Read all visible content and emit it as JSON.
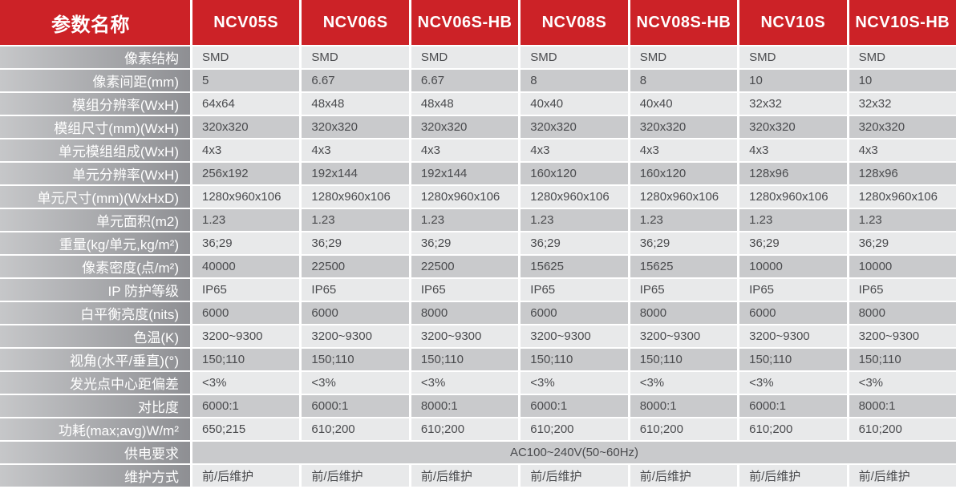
{
  "colors": {
    "header_red": "#cc2227",
    "row_light": "#e8e9ea",
    "row_dark": "#c9cacc",
    "label_gradient_left": "#c6c7c9",
    "label_gradient_right": "#8e8f93",
    "header_text": "#ffffff",
    "data_text": "#4a4b4e"
  },
  "table": {
    "param_header": "参数名称",
    "columns": [
      "NCV05S",
      "NCV06S",
      "NCV06S-HB",
      "NCV08S",
      "NCV08S-HB",
      "NCV10S",
      "NCV10S-HB"
    ],
    "rows": [
      {
        "label": "像素结构",
        "values": [
          "SMD",
          "SMD",
          "SMD",
          "SMD",
          "SMD",
          "SMD",
          "SMD"
        ]
      },
      {
        "label": "像素间距(mm)",
        "values": [
          "5",
          "6.67",
          "6.67",
          "8",
          "8",
          "10",
          "10"
        ]
      },
      {
        "label": "模组分辨率(WxH)",
        "values": [
          "64x64",
          "48x48",
          "48x48",
          "40x40",
          "40x40",
          "32x32",
          "32x32"
        ]
      },
      {
        "label": "模组尺寸(mm)(WxH)",
        "values": [
          "320x320",
          "320x320",
          "320x320",
          "320x320",
          "320x320",
          "320x320",
          "320x320"
        ]
      },
      {
        "label": "单元模组组成(WxH)",
        "values": [
          "4x3",
          "4x3",
          "4x3",
          "4x3",
          "4x3",
          "4x3",
          "4x3"
        ]
      },
      {
        "label": "单元分辨率(WxH)",
        "values": [
          "256x192",
          "192x144",
          "192x144",
          "160x120",
          "160x120",
          "128x96",
          "128x96"
        ]
      },
      {
        "label": "单元尺寸(mm)(WxHxD)",
        "values": [
          "1280x960x106",
          "1280x960x106",
          "1280x960x106",
          "1280x960x106",
          "1280x960x106",
          "1280x960x106",
          "1280x960x106"
        ]
      },
      {
        "label": "单元面积(m2)",
        "values": [
          "1.23",
          "1.23",
          "1.23",
          "1.23",
          "1.23",
          "1.23",
          "1.23"
        ]
      },
      {
        "label": "重量(kg/单元,kg/m²)",
        "values": [
          "36;29",
          "36;29",
          "36;29",
          "36;29",
          "36;29",
          "36;29",
          "36;29"
        ]
      },
      {
        "label": "像素密度(点/m²)",
        "values": [
          "40000",
          "22500",
          "22500",
          "15625",
          "15625",
          "10000",
          "10000"
        ]
      },
      {
        "label": "IP 防护等级",
        "values": [
          "IP65",
          "IP65",
          "IP65",
          "IP65",
          "IP65",
          "IP65",
          "IP65"
        ]
      },
      {
        "label": "白平衡亮度(nits)",
        "values": [
          "6000",
          "6000",
          "8000",
          "6000",
          "8000",
          "6000",
          "8000"
        ]
      },
      {
        "label": "色温(K)",
        "values": [
          "3200~9300",
          "3200~9300",
          "3200~9300",
          "3200~9300",
          "3200~9300",
          "3200~9300",
          "3200~9300"
        ]
      },
      {
        "label": "视角(水平/垂直)(°)",
        "values": [
          "150;110",
          "150;110",
          "150;110",
          "150;110",
          "150;110",
          "150;110",
          "150;110"
        ]
      },
      {
        "label": "发光点中心距偏差",
        "values": [
          "<3%",
          "<3%",
          "<3%",
          "<3%",
          "<3%",
          "<3%",
          "<3%"
        ]
      },
      {
        "label": "对比度",
        "values": [
          "6000:1",
          "6000:1",
          "8000:1",
          "6000:1",
          "8000:1",
          "6000:1",
          "8000:1"
        ]
      },
      {
        "label": "功耗(max;avg)W/m²",
        "values": [
          "650;215",
          "610;200",
          "610;200",
          "610;200",
          "610;200",
          "610;200",
          "610;200"
        ]
      },
      {
        "label": "供电要求",
        "merged_value": "AC100~240V(50~60Hz)"
      },
      {
        "label": "维护方式",
        "values": [
          "前/后维护",
          "前/后维护",
          "前/后维护",
          "前/后维护",
          "前/后维护",
          "前/后维护",
          "前/后维护"
        ]
      }
    ]
  }
}
